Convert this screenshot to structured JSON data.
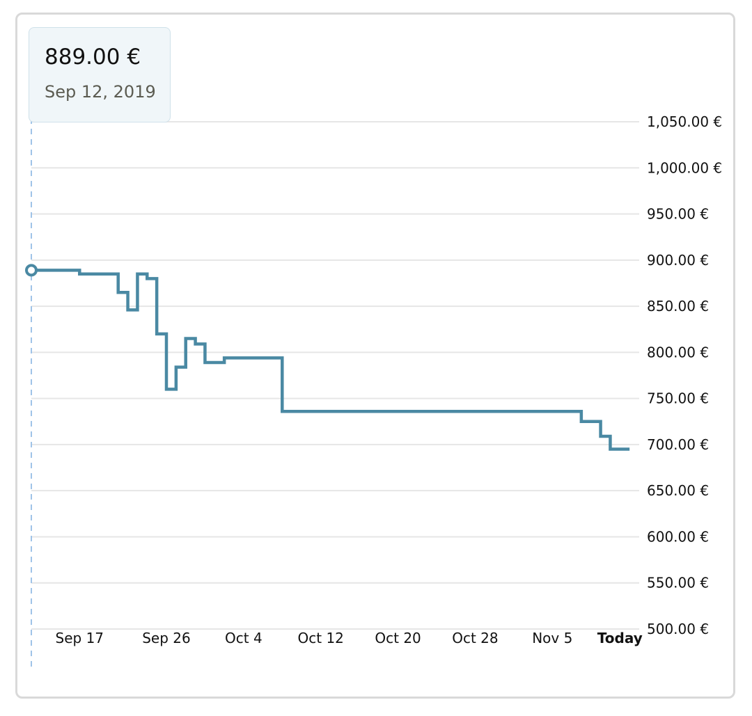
{
  "tooltip": {
    "price": "889.00 €",
    "date": "Sep 12, 2019"
  },
  "colors": {
    "line": "#4a89a3",
    "grid": "#e6e6e6",
    "cursor": "#9fc3e8",
    "card_border": "#d9d9d9"
  },
  "chart_data": {
    "type": "line",
    "step": true,
    "grid": true,
    "y_axis_position": "right",
    "ylim": [
      500,
      1050
    ],
    "y_ticks": [
      500,
      550,
      600,
      650,
      700,
      750,
      800,
      850,
      900,
      950,
      1000,
      1050
    ],
    "y_tick_labels": [
      "500.00 €",
      "550.00 €",
      "600.00 €",
      "650.00 €",
      "700.00 €",
      "750.00 €",
      "800.00 €",
      "850.00 €",
      "900.00 €",
      "950.00 €",
      "1,000.00 €",
      "1,050.00 €"
    ],
    "x_ticks": [
      {
        "date": "2019-09-17",
        "label": "Sep 17",
        "bold": false
      },
      {
        "date": "2019-09-26",
        "label": "Sep 26",
        "bold": false
      },
      {
        "date": "2019-10-04",
        "label": "Oct 4",
        "bold": false
      },
      {
        "date": "2019-10-12",
        "label": "Oct 12",
        "bold": false
      },
      {
        "date": "2019-10-20",
        "label": "Oct 20",
        "bold": false
      },
      {
        "date": "2019-10-28",
        "label": "Oct 28",
        "bold": false
      },
      {
        "date": "2019-11-05",
        "label": "Nov 5",
        "bold": false
      },
      {
        "date": "2019-11-12",
        "label": "Today",
        "bold": true
      }
    ],
    "xlim": [
      "2019-09-12",
      "2019-11-14"
    ],
    "series": [
      {
        "highlight": {
          "x": "2019-09-12",
          "y": 889
        },
        "points": [
          {
            "x": "2019-09-12",
            "y": 889
          },
          {
            "x": "2019-09-17",
            "y": 885
          },
          {
            "x": "2019-09-21",
            "y": 865
          },
          {
            "x": "2019-09-22",
            "y": 846
          },
          {
            "x": "2019-09-23",
            "y": 885
          },
          {
            "x": "2019-09-24",
            "y": 880
          },
          {
            "x": "2019-09-25",
            "y": 820
          },
          {
            "x": "2019-09-26",
            "y": 760
          },
          {
            "x": "2019-09-27",
            "y": 784
          },
          {
            "x": "2019-09-28",
            "y": 815
          },
          {
            "x": "2019-09-29",
            "y": 809
          },
          {
            "x": "2019-09-30",
            "y": 789
          },
          {
            "x": "2019-10-02",
            "y": 794
          },
          {
            "x": "2019-10-08",
            "y": 736
          },
          {
            "x": "2019-11-08",
            "y": 725
          },
          {
            "x": "2019-11-10",
            "y": 709
          },
          {
            "x": "2019-11-11",
            "y": 695
          },
          {
            "x": "2019-11-13",
            "y": 695
          }
        ]
      }
    ]
  }
}
